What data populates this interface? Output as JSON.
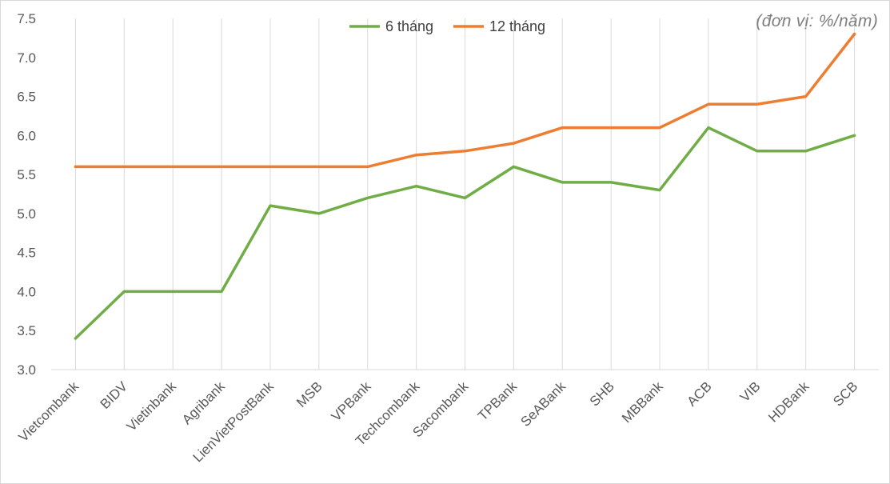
{
  "chart_data": {
    "type": "line",
    "unit_label": "(đơn vị: %/năm)",
    "categories": [
      "Vietcombank",
      "BIDV",
      "Vietinbank",
      "Agribank",
      "LienVietPostBank",
      "MSB",
      "VPBank",
      "Techcombank",
      "Sacombank",
      "TPBank",
      "SeABank",
      "SHB",
      "MBBank",
      "ACB",
      "VIB",
      "HDBank",
      "SCB"
    ],
    "series": [
      {
        "name": "6 tháng",
        "color": "#70ad47",
        "values": [
          3.4,
          4.0,
          4.0,
          4.0,
          5.1,
          5.0,
          5.2,
          5.35,
          5.2,
          5.6,
          5.4,
          5.4,
          5.3,
          6.1,
          5.8,
          5.8,
          6.0
        ]
      },
      {
        "name": "12 tháng",
        "color": "#ed7d31",
        "values": [
          5.6,
          5.6,
          5.6,
          5.6,
          5.6,
          5.6,
          5.6,
          5.75,
          5.8,
          5.9,
          6.1,
          6.1,
          6.1,
          6.4,
          6.4,
          6.5,
          7.3
        ]
      }
    ],
    "yticks": [
      "3.0",
      "3.5",
      "4.0",
      "4.5",
      "5.0",
      "5.5",
      "6.0",
      "6.5",
      "7.0",
      "7.5"
    ],
    "ylim": [
      3.0,
      7.5
    ],
    "grid": "vertical",
    "legend": "top-center"
  }
}
